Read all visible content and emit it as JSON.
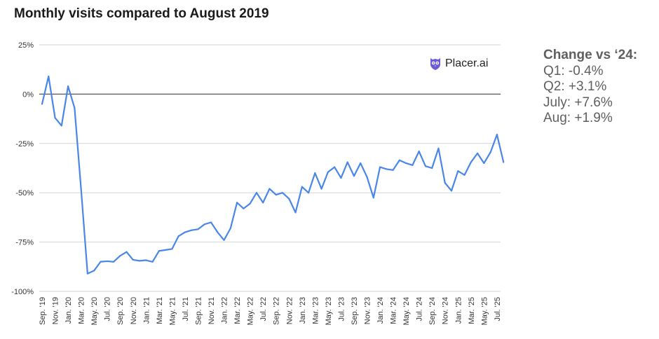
{
  "chart_data": {
    "type": "line",
    "title": "Monthly visits compared to August 2019",
    "xlabel": "",
    "ylabel": "",
    "ylim": [
      -100,
      25
    ],
    "y_ticks": [
      "25%",
      "0%",
      "-25%",
      "-50%",
      "-75%",
      "-100%"
    ],
    "y_tick_values": [
      25,
      0,
      -25,
      -50,
      -75,
      -100
    ],
    "grid": true,
    "line_color": "#4a86e8",
    "x_labels": [
      "Sep. '19",
      "Nov. '19",
      "Jan. '20",
      "Mar. '20",
      "May. '20",
      "Jul. '20",
      "Sep. '20",
      "Nov. '20",
      "Jan. '21",
      "Mar. '21",
      "May. '21",
      "Jul. '21",
      "Sep. '21",
      "Nov. '21",
      "Jan. '22",
      "Mar. '22",
      "May. '22",
      "Jul. '22",
      "Sep. '22",
      "Nov. '22",
      "Jan. '23",
      "Mar. '23",
      "May. '23",
      "Jul. '23",
      "Sep. '23",
      "Nov. '23",
      "Jan. '24",
      "Mar. '24",
      "May. '24",
      "Jul. '24",
      "Sep. '24",
      "Nov. '24",
      "Jan. '25",
      "Mar. '25",
      "May. '25",
      "Jul. '25"
    ],
    "values": [
      -5,
      9,
      -12,
      -16,
      4,
      -7,
      -48,
      -91,
      -89.5,
      -85,
      -84.7,
      -85,
      -82,
      -80,
      -84,
      -84.5,
      -84.2,
      -85,
      -79.5,
      -79,
      -78.5,
      -72,
      -70,
      -69,
      -68.5,
      -66,
      -65,
      -70,
      -74,
      -68,
      -55,
      -58,
      -55.5,
      -50,
      -55,
      -48,
      -51,
      -50,
      -53,
      -60,
      -47,
      -50,
      -40,
      -48,
      -39.5,
      -37,
      -42.5,
      -34.5,
      -41.5,
      -35,
      -42,
      -52.5,
      -37,
      -38,
      -38.5,
      -33.5,
      -35,
      -36,
      -29,
      -36.5,
      -37.5,
      -27.5,
      -45,
      -49,
      -39,
      -41,
      -34.5,
      -30,
      -35,
      -29.5,
      -20.5,
      -34.5
    ]
  },
  "logo": {
    "text": "Placer.ai",
    "icon": "owl-icon",
    "color": "#6b5bd6"
  },
  "sidebar": {
    "title": "Change vs ‘24:",
    "lines": [
      "Q1: -0.4%",
      "Q2: +3.1%",
      "July: +7.6%",
      "Aug: +1.9%"
    ]
  }
}
